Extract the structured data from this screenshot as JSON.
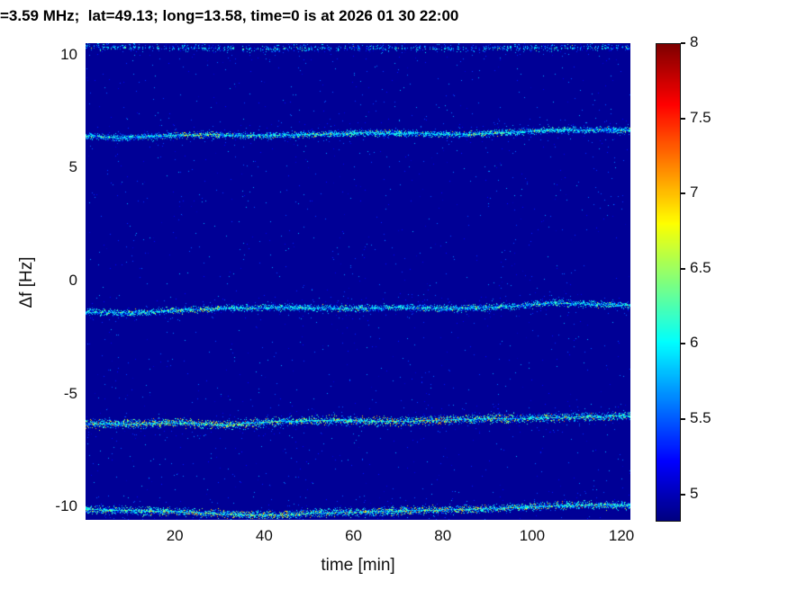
{
  "chart_data": {
    "type": "heatmap",
    "title": "=3.59 MHz;  lat=49.13; long=13.58, time=0 is at 2026 01 30 22:00",
    "xlabel": "time [min]",
    "ylabel": "Δf [Hz]",
    "xlim": [
      0,
      122
    ],
    "ylim": [
      -10.55,
      10.55
    ],
    "xticks": [
      20,
      40,
      60,
      80,
      100,
      120
    ],
    "yticks": [
      -10,
      -5,
      0,
      5,
      10
    ],
    "colorbar": {
      "min": 4.83,
      "max": 8,
      "ticks": [
        5,
        5.5,
        6,
        6.5,
        7,
        7.5,
        8
      ],
      "colormap": "jet"
    },
    "background_value": 4.9,
    "noise": {
      "count": 1600,
      "value_range": [
        5.0,
        5.8
      ]
    },
    "spectral_lines": [
      {
        "name": "line-plus-10.3",
        "path": [
          [
            0,
            10.4
          ],
          [
            15,
            10.35
          ],
          [
            40,
            10.3
          ],
          [
            60,
            10.35
          ],
          [
            80,
            10.3
          ],
          [
            100,
            10.35
          ],
          [
            122,
            10.35
          ]
        ],
        "thickness_hz": 0.18,
        "density": 0.45,
        "value_range": [
          5.2,
          6.1
        ],
        "hot_prob": 0.03,
        "hot_value_range": [
          6.2,
          6.8
        ],
        "hot_regions": [
          [
            0,
            9,
            0.05
          ],
          [
            38,
            48,
            0.05
          ]
        ]
      },
      {
        "name": "line-plus-6.5",
        "path": [
          [
            0,
            6.45
          ],
          [
            8,
            6.35
          ],
          [
            18,
            6.45
          ],
          [
            28,
            6.5
          ],
          [
            38,
            6.45
          ],
          [
            50,
            6.5
          ],
          [
            62,
            6.58
          ],
          [
            72,
            6.55
          ],
          [
            85,
            6.5
          ],
          [
            95,
            6.6
          ],
          [
            105,
            6.7
          ],
          [
            122,
            6.7
          ]
        ],
        "thickness_hz": 0.16,
        "density": 0.95,
        "value_range": [
          5.3,
          6.3
        ],
        "hot_prob": 0.05,
        "hot_value_range": [
          6.4,
          7.1
        ],
        "hot_regions": [
          [
            20,
            30,
            0.25
          ],
          [
            85,
            92,
            0.1
          ]
        ]
      },
      {
        "name": "line-minus-1.2",
        "path": [
          [
            0,
            -1.35
          ],
          [
            10,
            -1.4
          ],
          [
            20,
            -1.28
          ],
          [
            32,
            -1.18
          ],
          [
            45,
            -1.15
          ],
          [
            58,
            -1.2
          ],
          [
            70,
            -1.15
          ],
          [
            82,
            -1.2
          ],
          [
            95,
            -1.1
          ],
          [
            105,
            -0.95
          ],
          [
            115,
            -1.02
          ],
          [
            122,
            -1.05
          ]
        ],
        "thickness_hz": 0.16,
        "density": 0.9,
        "value_range": [
          5.3,
          6.3
        ],
        "hot_prob": 0.05,
        "hot_value_range": [
          6.4,
          7.0
        ],
        "hot_regions": [
          [
            18,
            28,
            0.12
          ]
        ]
      },
      {
        "name": "line-minus-6.2",
        "path": [
          [
            0,
            -6.3
          ],
          [
            12,
            -6.3
          ],
          [
            22,
            -6.25
          ],
          [
            30,
            -6.35
          ],
          [
            42,
            -6.2
          ],
          [
            55,
            -6.15
          ],
          [
            70,
            -6.2
          ],
          [
            85,
            -6.1
          ],
          [
            100,
            -6.05
          ],
          [
            112,
            -6.0
          ],
          [
            122,
            -5.95
          ]
        ],
        "thickness_hz": 0.22,
        "density": 1,
        "value_range": [
          5.3,
          6.4
        ],
        "hot_prob": 0.12,
        "hot_value_range": [
          6.5,
          7.3
        ],
        "hot_regions": [
          [
            10,
            35,
            0.1
          ],
          [
            55,
            95,
            0.08
          ]
        ]
      },
      {
        "name": "line-minus-10.2",
        "path": [
          [
            0,
            -10.1
          ],
          [
            12,
            -10.15
          ],
          [
            22,
            -10.2
          ],
          [
            32,
            -10.3
          ],
          [
            42,
            -10.35
          ],
          [
            52,
            -10.25
          ],
          [
            62,
            -10.2
          ],
          [
            72,
            -10.15
          ],
          [
            82,
            -10.1
          ],
          [
            92,
            -10.05
          ],
          [
            102,
            -9.95
          ],
          [
            112,
            -9.9
          ],
          [
            122,
            -9.9
          ]
        ],
        "thickness_hz": 0.2,
        "density": 1,
        "value_range": [
          5.3,
          6.4
        ],
        "hot_prob": 0.1,
        "hot_value_range": [
          6.5,
          7.2
        ],
        "hot_regions": [
          [
            22,
            46,
            0.12
          ],
          [
            60,
            90,
            0.08
          ]
        ]
      }
    ]
  }
}
